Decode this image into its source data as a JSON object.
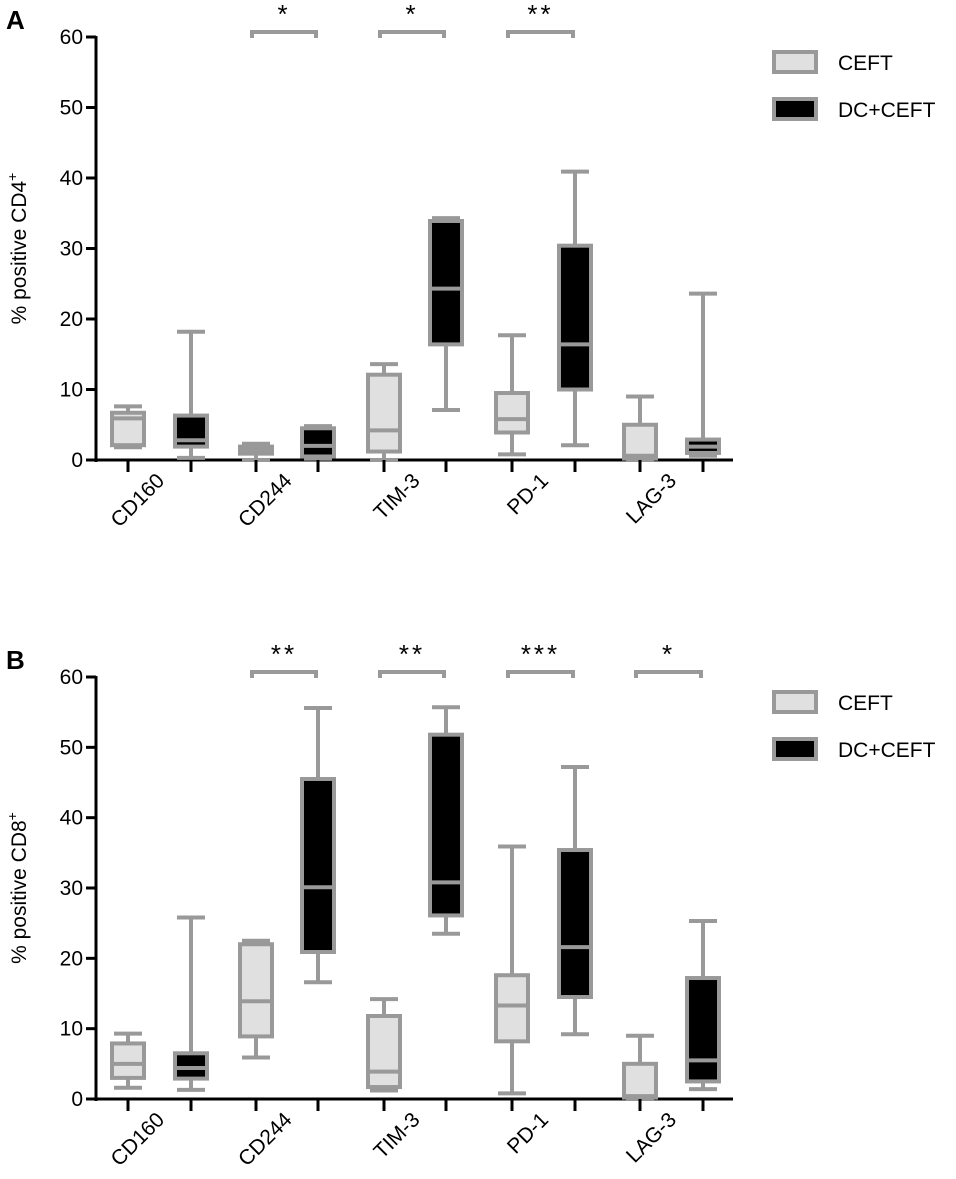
{
  "colors": {
    "ceft_fill": "#e0e0e0",
    "dcceft_fill": "#000000",
    "box_stroke": "#999999",
    "axis": "#000000"
  },
  "chart_data": [
    {
      "type": "box",
      "panel_label": "A",
      "ylabel": "% positive CD4",
      "ylabel_sup": "+",
      "ylim": [
        0,
        60
      ],
      "yticks": [
        0,
        10,
        20,
        30,
        40,
        50,
        60
      ],
      "grid": false,
      "legend_placement": "top-right",
      "categories": [
        "CD160",
        "CD244",
        "TIM-3",
        "PD-1",
        "LAG-3"
      ],
      "series": [
        {
          "name": "CEFT",
          "boxes": [
            {
              "min": 1.8,
              "q1": 2.1,
              "median": 5.9,
              "q3": 6.7,
              "max": 7.6
            },
            {
              "min": 0,
              "q1": 0.9,
              "median": 1.4,
              "q3": 1.9,
              "max": 2.3
            },
            {
              "min": 0,
              "q1": 1.2,
              "median": 4.2,
              "q3": 12.1,
              "max": 13.6
            },
            {
              "min": 0.8,
              "q1": 3.9,
              "median": 5.8,
              "q3": 9.5,
              "max": 17.7
            },
            {
              "min": 0,
              "q1": 0.2,
              "median": 0.6,
              "q3": 5.0,
              "max": 9.0
            }
          ]
        },
        {
          "name": "DC+CEFT",
          "boxes": [
            {
              "min": 0.3,
              "q1": 1.9,
              "median": 2.8,
              "q3": 6.3,
              "max": 18.2
            },
            {
              "min": 0.2,
              "q1": 0.5,
              "median": 2.0,
              "q3": 4.5,
              "max": 4.8
            },
            {
              "min": 7.1,
              "q1": 16.4,
              "median": 24.3,
              "q3": 33.9,
              "max": 34.3
            },
            {
              "min": 2.1,
              "q1": 10.0,
              "median": 16.4,
              "q3": 30.4,
              "max": 40.9
            },
            {
              "min": 0.6,
              "q1": 1.0,
              "median": 1.9,
              "q3": 2.9,
              "max": 23.6
            }
          ]
        }
      ],
      "significance": [
        {
          "category": "CD244",
          "label": "*"
        },
        {
          "category": "TIM-3",
          "label": "*"
        },
        {
          "category": "PD-1",
          "label": "**"
        }
      ]
    },
    {
      "type": "box",
      "panel_label": "B",
      "ylabel": "% positive CD8",
      "ylabel_sup": "+",
      "ylim": [
        0,
        60
      ],
      "yticks": [
        0,
        10,
        20,
        30,
        40,
        50,
        60
      ],
      "grid": false,
      "legend_placement": "top-right",
      "categories": [
        "CD160",
        "CD244",
        "TIM-3",
        "PD-1",
        "LAG-3"
      ],
      "series": [
        {
          "name": "CEFT",
          "boxes": [
            {
              "min": 1.6,
              "q1": 3.0,
              "median": 5.0,
              "q3": 7.9,
              "max": 9.3
            },
            {
              "min": 5.9,
              "q1": 8.9,
              "median": 13.9,
              "q3": 22.0,
              "max": 22.5
            },
            {
              "min": 1.2,
              "q1": 1.7,
              "median": 3.9,
              "q3": 11.8,
              "max": 14.2
            },
            {
              "min": 0.8,
              "q1": 8.2,
              "median": 13.3,
              "q3": 17.6,
              "max": 35.9
            },
            {
              "min": 0,
              "q1": 0.2,
              "median": 0.4,
              "q3": 5.0,
              "max": 9.0
            }
          ]
        },
        {
          "name": "DC+CEFT",
          "boxes": [
            {
              "min": 1.3,
              "q1": 2.9,
              "median": 4.4,
              "q3": 6.5,
              "max": 25.8
            },
            {
              "min": 16.6,
              "q1": 20.9,
              "median": 30.1,
              "q3": 45.5,
              "max": 55.6
            },
            {
              "min": 23.5,
              "q1": 26.1,
              "median": 30.8,
              "q3": 51.8,
              "max": 55.7
            },
            {
              "min": 9.2,
              "q1": 14.5,
              "median": 21.6,
              "q3": 35.4,
              "max": 47.2
            },
            {
              "min": 1.4,
              "q1": 2.5,
              "median": 5.5,
              "q3": 17.2,
              "max": 25.3
            }
          ]
        }
      ],
      "significance": [
        {
          "category": "CD244",
          "label": "**"
        },
        {
          "category": "TIM-3",
          "label": "**"
        },
        {
          "category": "PD-1",
          "label": "***"
        },
        {
          "category": "LAG-3",
          "label": "*"
        }
      ]
    }
  ]
}
